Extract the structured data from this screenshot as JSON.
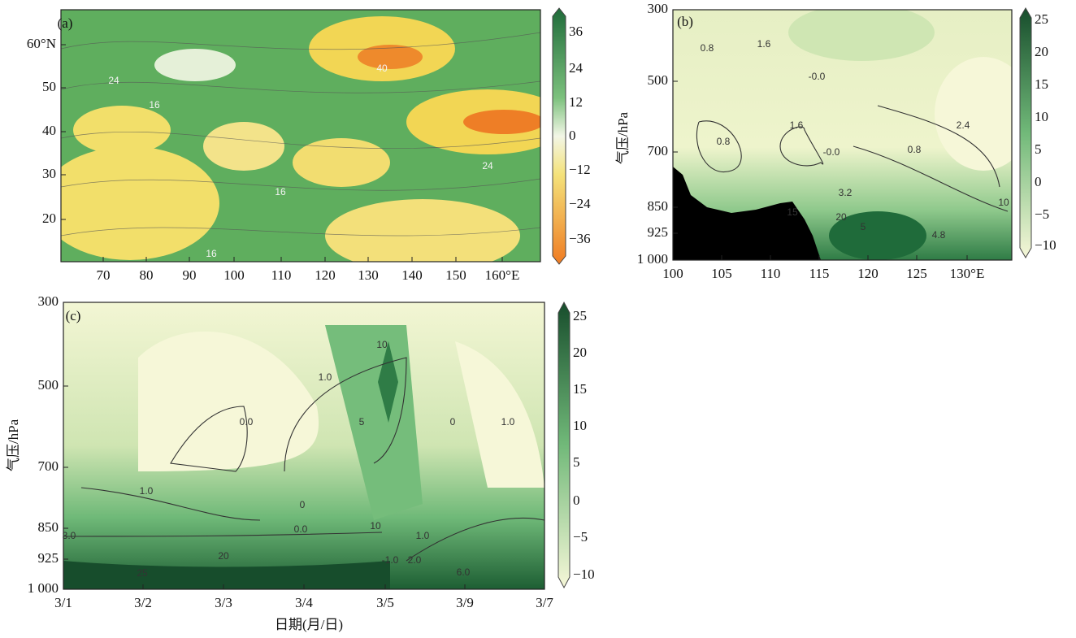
{
  "panels": [
    {
      "label": "(a)",
      "xticks": [
        "70",
        "80",
        "90",
        "100",
        "110",
        "120",
        "130",
        "140",
        "150",
        "160°E"
      ],
      "yticks": [
        "60°N",
        "50",
        "40",
        "30",
        "20"
      ],
      "colorbar": [
        "36",
        "24",
        "12",
        "0",
        "−12",
        "−24",
        "−36"
      ],
      "annotations": [
        "24",
        "16",
        "40",
        "24",
        "16",
        "16"
      ]
    },
    {
      "label": "(b)",
      "ylabel": "气压/hPa",
      "xticks": [
        "100",
        "105",
        "110",
        "115",
        "120",
        "125",
        "130°E"
      ],
      "yticks": [
        "300",
        "500",
        "700",
        "850",
        "925",
        "1 000"
      ],
      "colorbar": [
        "25",
        "20",
        "15",
        "10",
        "5",
        "0",
        "−5",
        "−10"
      ],
      "annotations": [
        "0.8",
        "1.6",
        "-0.0",
        "1.6",
        "2.4",
        "0.8",
        "0.8",
        "-0.0",
        "10",
        "15",
        "20",
        "5",
        "3.2",
        "4.8"
      ]
    },
    {
      "label": "(c)",
      "ylabel": "气压/hPa",
      "xlabel": "日期(月/日)",
      "xticks": [
        "3/1",
        "3/2",
        "3/3",
        "3/4",
        "3/5",
        "3/9",
        "3/7"
      ],
      "yticks": [
        "300",
        "500",
        "700",
        "850",
        "925",
        "1 000"
      ],
      "colorbar": [
        "25",
        "20",
        "15",
        "10",
        "5",
        "0",
        "−5",
        "−10"
      ],
      "annotations": [
        "1.0",
        "0.0",
        "1.0",
        "10",
        "5",
        "0",
        "1.0",
        "1.0",
        "0",
        "3.0",
        "0.0",
        "20",
        "25",
        "-1.0",
        "2.0",
        "6.0",
        "10"
      ]
    }
  ]
}
